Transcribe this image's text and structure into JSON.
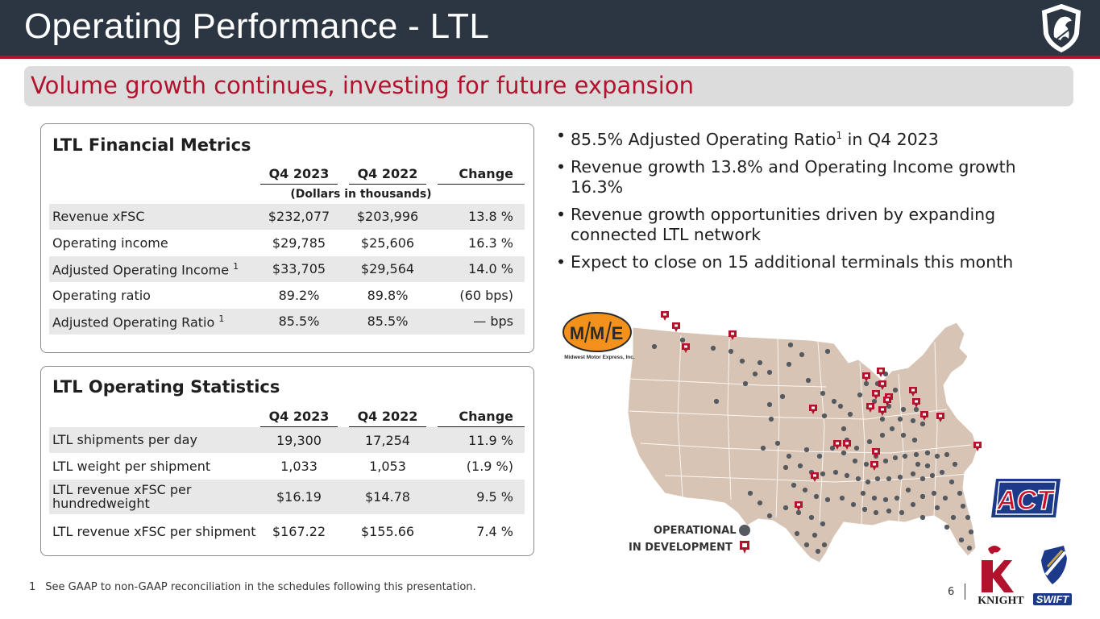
{
  "header": {
    "title": "Operating Performance - LTL",
    "subtitle": "Volume growth continues, investing for future expansion"
  },
  "financial_metrics": {
    "title": "LTL Financial Metrics",
    "columns": [
      "Q4 2023",
      "Q4 2022",
      "Change"
    ],
    "units": "(Dollars in thousands)",
    "rows": [
      {
        "label": "Revenue xFSC",
        "sup": "",
        "q4_2023": "$232,077",
        "q4_2022": "$203,996",
        "change": "13.8 %"
      },
      {
        "label": "Operating income",
        "sup": "",
        "q4_2023": "$29,785",
        "q4_2022": "$25,606",
        "change": "16.3 %"
      },
      {
        "label": "Adjusted Operating Income",
        "sup": "1",
        "q4_2023": "$33,705",
        "q4_2022": "$29,564",
        "change": "14.0 %"
      },
      {
        "label": "Operating ratio",
        "sup": "",
        "q4_2023": "89.2%",
        "q4_2022": "89.8%",
        "change": "(60 bps)"
      },
      {
        "label": "Adjusted Operating Ratio",
        "sup": "1",
        "q4_2023": "85.5%",
        "q4_2022": "85.5%",
        "change": "— bps"
      }
    ]
  },
  "operating_statistics": {
    "title": "LTL Operating Statistics",
    "columns": [
      "Q4 2023",
      "Q4 2022",
      "Change"
    ],
    "rows": [
      {
        "label": "LTL shipments per day",
        "q4_2023": "19,300",
        "q4_2022": "17,254",
        "change": "11.9 %"
      },
      {
        "label": "LTL weight per shipment",
        "q4_2023": "1,033",
        "q4_2022": "1,053",
        "change": "(1.9 %)"
      },
      {
        "label": "LTL revenue xFSC per hundredweight",
        "q4_2023": "$16.19",
        "q4_2022": "$14.78",
        "change": "9.5 %"
      },
      {
        "label": "LTL revenue xFSC per shipment",
        "q4_2023": "$167.22",
        "q4_2022": "$155.66",
        "change": "7.4 %"
      }
    ]
  },
  "bullets": [
    {
      "text": "85.5% Adjusted Operating Ratio",
      "sup": "1",
      "tail": " in Q4 2023"
    },
    {
      "text": "Revenue growth 13.8% and Operating Income growth 16.3%",
      "sup": "",
      "tail": ""
    },
    {
      "text": "Revenue growth opportunities driven by expanding connected LTL network",
      "sup": "",
      "tail": ""
    },
    {
      "text": "Expect to close on 15 additional terminals this month",
      "sup": "",
      "tail": ""
    }
  ],
  "map": {
    "legend_operational": "OPERATIONAL",
    "legend_development": "IN DEVELOPMENT",
    "land_color": "#d8c4b4",
    "border_color": "#ffffff",
    "operational_color": "#555a60",
    "development_color": "#b3122d"
  },
  "logos": {
    "mme_letters": [
      "M",
      "M",
      "E"
    ],
    "mme_caption": "Midwest Motor Express, Inc.",
    "act": "ACT",
    "knight": "KNIGHT",
    "swift": "SWIFT"
  },
  "footnote": {
    "number": "1",
    "text": "See GAAP to non-GAAP reconciliation in the schedules following this presentation."
  },
  "page_number": "6"
}
